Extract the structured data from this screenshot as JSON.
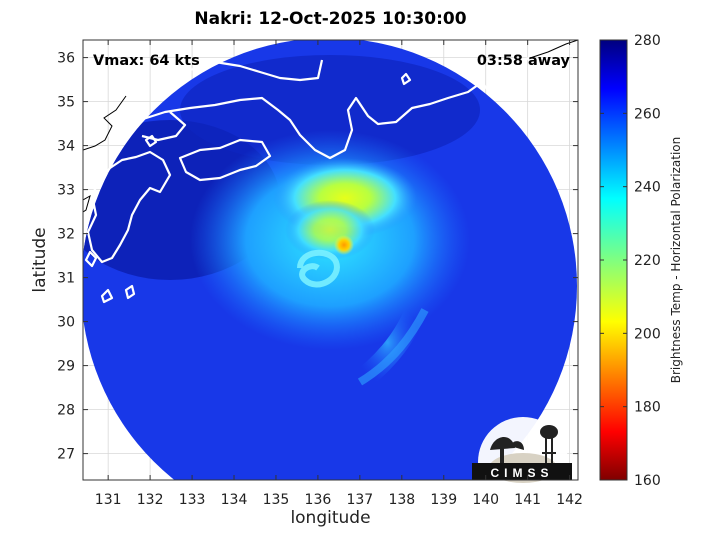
{
  "title": "Nakri: 12-Oct-2025 10:30:00",
  "annotations": {
    "vmax": "Vmax: 64 kts",
    "time_away": "03:58 away"
  },
  "logo_text": "CIMSS",
  "colormap": "jet",
  "map": {
    "region": "Southern Japan and the western Pacific off Honshu/Shikoku/Kyushu",
    "xlabel": "longitude",
    "ylabel": "latitude",
    "xlim": [
      130.4,
      142.2
    ],
    "ylim": [
      26.4,
      36.4
    ],
    "xticks": [
      "131",
      "132",
      "133",
      "134",
      "135",
      "136",
      "137",
      "138",
      "139",
      "140",
      "141",
      "142"
    ],
    "yticks": [
      "27",
      "28",
      "29",
      "30",
      "31",
      "32",
      "33",
      "34",
      "35",
      "36"
    ],
    "grid": true,
    "swath_center_lon": 136.4,
    "storm_center": {
      "lon": 136.2,
      "lat": 31.3
    },
    "coldest_core": {
      "lon": 136.6,
      "lat": 31.6
    }
  },
  "colorbar": {
    "label": "Brightness Temp - Horizontal Polarization",
    "range": [
      160,
      280
    ],
    "ticks": [
      "280",
      "260",
      "240",
      "220",
      "200",
      "180",
      "160"
    ]
  }
}
